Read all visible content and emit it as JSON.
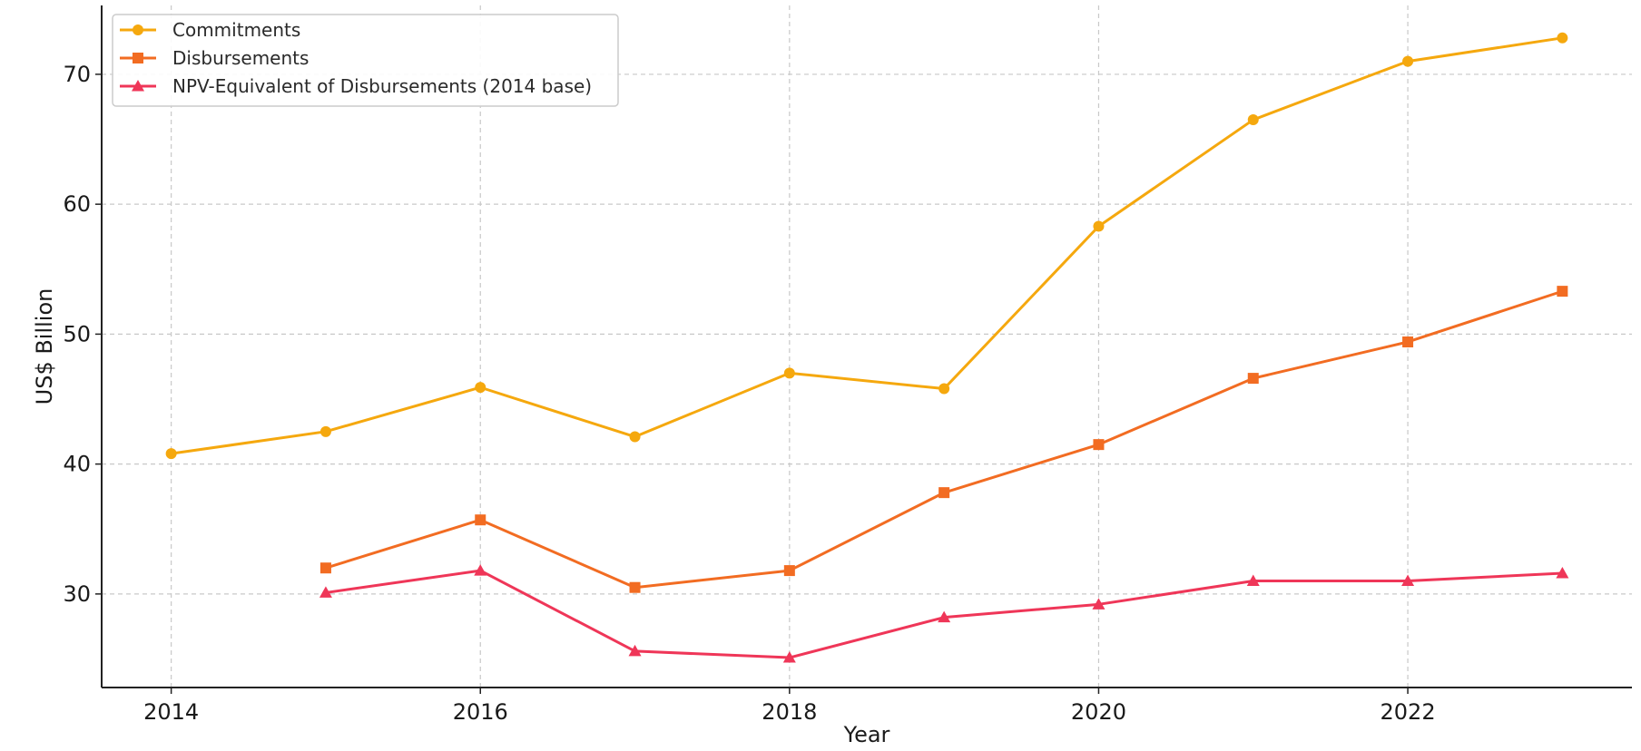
{
  "chart_data": {
    "type": "line",
    "title": "",
    "xlabel": "Year",
    "ylabel": "US$ Billion",
    "xlim": [
      2013.55,
      2023.45
    ],
    "ylim": [
      22.8,
      75.3
    ],
    "xticks": [
      2014,
      2016,
      2018,
      2020,
      2022
    ],
    "yticks": [
      30,
      40,
      50,
      60,
      70
    ],
    "grid": true,
    "legend_position": "top-left",
    "series": [
      {
        "name": "Commitments",
        "color": "#f5a80e",
        "marker": "circle",
        "x": [
          2014,
          2015,
          2016,
          2017,
          2018,
          2019,
          2020,
          2021,
          2022,
          2023
        ],
        "values": [
          40.8,
          42.5,
          45.9,
          42.1,
          47.0,
          45.8,
          58.3,
          66.5,
          71.0,
          72.8
        ]
      },
      {
        "name": "Disbursements",
        "color": "#f26c22",
        "marker": "square",
        "x": [
          2015,
          2016,
          2017,
          2018,
          2019,
          2020,
          2021,
          2022,
          2023
        ],
        "values": [
          32.0,
          35.7,
          30.5,
          31.8,
          37.8,
          41.5,
          46.6,
          49.4,
          53.3
        ]
      },
      {
        "name": "NPV-Equivalent of Disbursements (2014 base)",
        "color": "#ef3658",
        "marker": "triangle",
        "x": [
          2015,
          2016,
          2017,
          2018,
          2019,
          2020,
          2021,
          2022,
          2023
        ],
        "values": [
          30.1,
          31.8,
          25.6,
          25.1,
          28.2,
          29.2,
          31.0,
          31.0,
          31.6
        ]
      }
    ]
  }
}
